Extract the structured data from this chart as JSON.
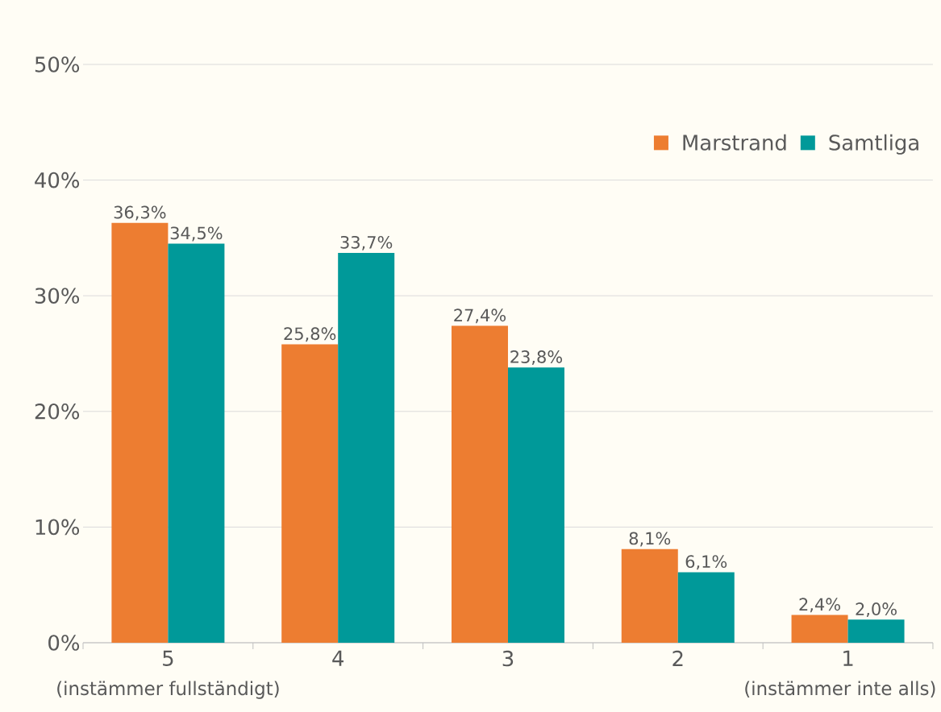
{
  "chart_data": {
    "type": "bar",
    "categories": [
      "5",
      "4",
      "3",
      "2",
      "1"
    ],
    "series": [
      {
        "name": "Marstrand",
        "color": "#ed7d31",
        "values": [
          36.3,
          25.8,
          27.4,
          8.1,
          2.4
        ],
        "value_labels": [
          "36,3%",
          "25,8%",
          "27,4%",
          "8,1%",
          "2,4%"
        ]
      },
      {
        "name": "Samtliga",
        "color": "#009999",
        "values": [
          34.5,
          33.7,
          23.8,
          6.1,
          2.0
        ],
        "value_labels": [
          "34,5%",
          "33,7%",
          "23,8%",
          "6,1%",
          "2,0%"
        ]
      }
    ],
    "ylim": [
      0,
      50
    ],
    "yticks": [
      {
        "value": 0,
        "label": "0%"
      },
      {
        "value": 10,
        "label": "10%"
      },
      {
        "value": 20,
        "label": "20%"
      },
      {
        "value": 30,
        "label": "30%"
      },
      {
        "value": 40,
        "label": "40%"
      },
      {
        "value": 50,
        "label": "50%"
      }
    ],
    "grid": "y",
    "legend": "top right",
    "annotations": [
      "(instämmer fullständigt)",
      "(instämmer inte alls)"
    ]
  }
}
